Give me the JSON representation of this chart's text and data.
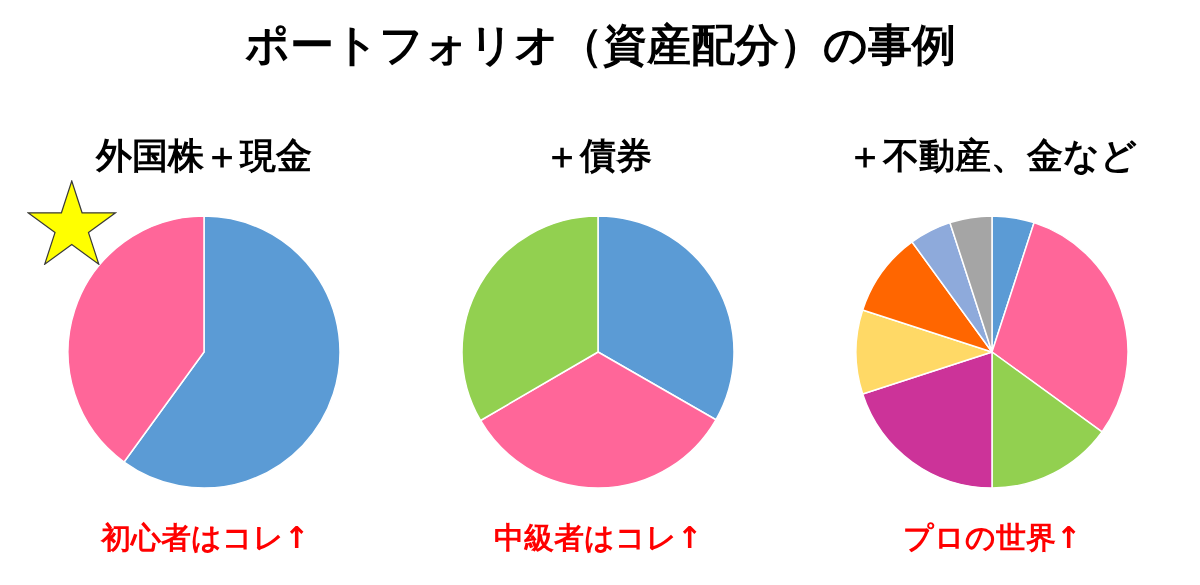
{
  "chart_data": [
    {
      "type": "other",
      "title": "ポートフォリオ（資産配分）の事例"
    },
    {
      "type": "pie",
      "title": "外国株＋現金",
      "categories": [
        null,
        null
      ],
      "values": [
        60,
        40
      ],
      "colors": [
        "#5b9bd5",
        "#ff6699"
      ],
      "annotations": [
        "初心者はコレ↑"
      ]
    },
    {
      "type": "pie",
      "title": "＋債券",
      "categories": [
        null,
        null,
        null
      ],
      "values": [
        33.3,
        33.3,
        33.4
      ],
      "colors": [
        "#5b9bd5",
        "#ff6699",
        "#92d050"
      ],
      "annotations": [
        "中級者はコレ↑"
      ]
    },
    {
      "type": "pie",
      "title": "＋不動産、金など",
      "categories": [
        null,
        null,
        null,
        null,
        null,
        null,
        null,
        null
      ],
      "values": [
        5,
        30,
        15,
        20,
        10,
        10,
        5,
        5
      ],
      "colors": [
        "#5b9bd5",
        "#ff6699",
        "#92d050",
        "#cc3399",
        "#ffd966",
        "#ff6600",
        "#8eaadb",
        "#a5a5a5"
      ],
      "annotations": [
        "プロの世界↑"
      ]
    }
  ]
}
